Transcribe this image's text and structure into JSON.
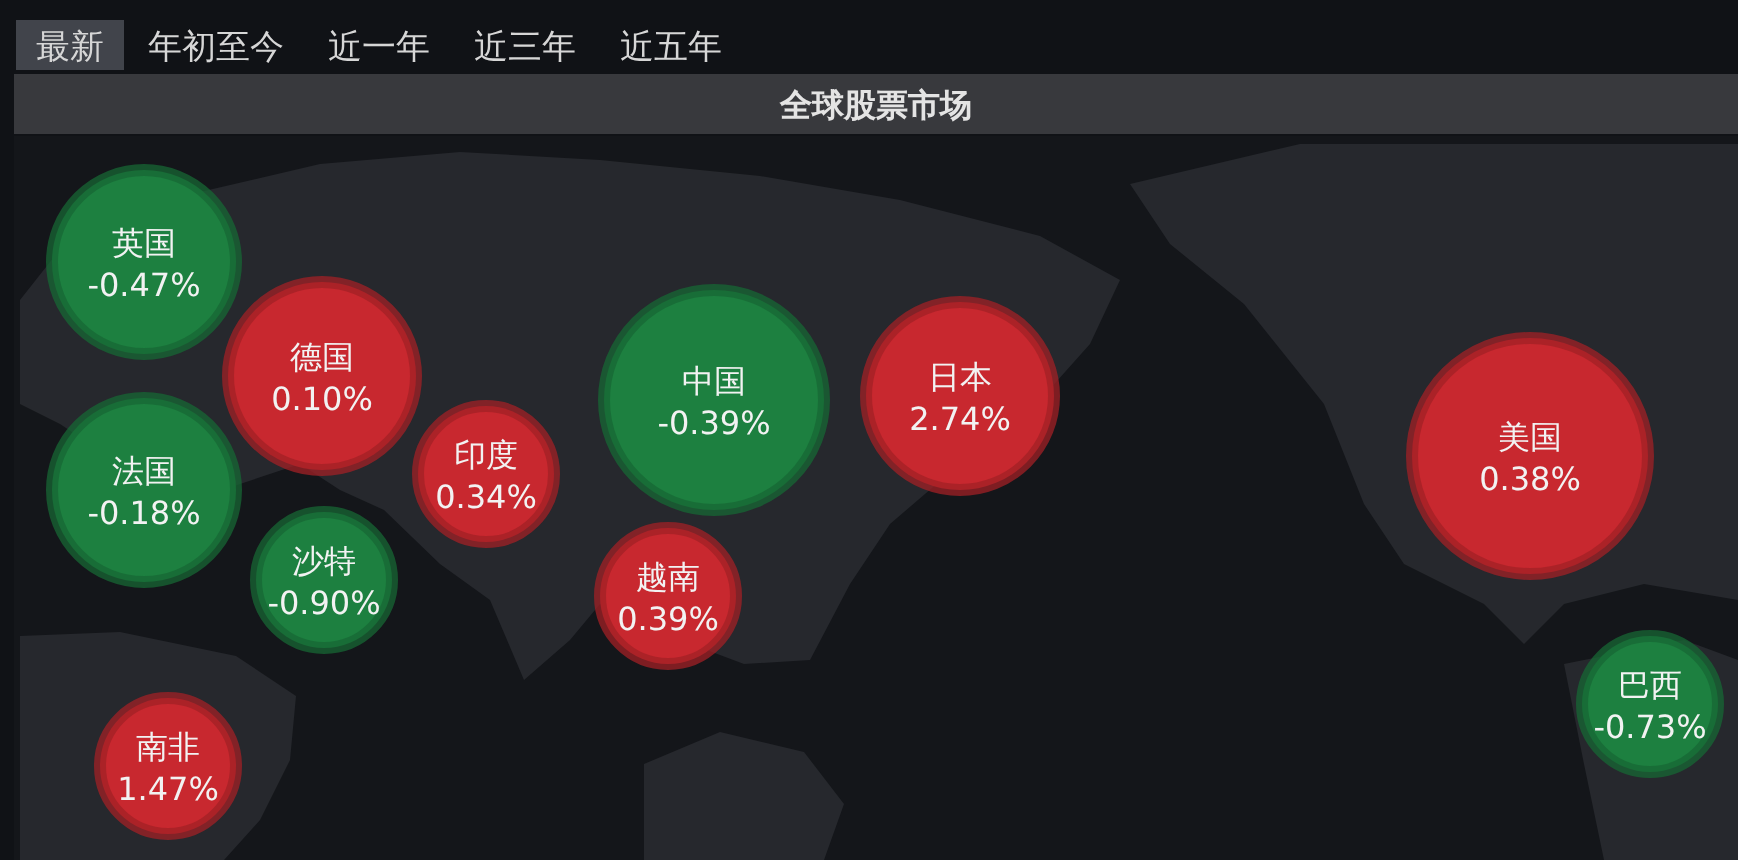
{
  "chart_data": {
    "type": "other",
    "title": "全球股票市场",
    "annotations": [
      "最新",
      "年初至今",
      "近一年",
      "近三年",
      "近五年"
    ],
    "categories": [
      "英国",
      "德国",
      "法国",
      "印度",
      "沙特",
      "南非",
      "中国",
      "越南",
      "日本",
      "美国",
      "巴西"
    ],
    "values": [
      -0.47,
      0.1,
      -0.18,
      0.34,
      -0.9,
      1.47,
      -0.39,
      0.39,
      2.74,
      0.38,
      -0.73
    ],
    "value_labels": [
      "-0.47%",
      "0.10%",
      "-0.18%",
      "0.34%",
      "-0.90%",
      "1.47%",
      "-0.39%",
      "0.39%",
      "2.74%",
      "0.38%",
      "-0.73%"
    ],
    "colors": [
      "#1d8040",
      "#c8282f",
      "#1d8040",
      "#c8282f",
      "#1d8040",
      "#c8282f",
      "#1d8040",
      "#c8282f",
      "#c8282f",
      "#c8282f",
      "#1d8040"
    ]
  }
}
